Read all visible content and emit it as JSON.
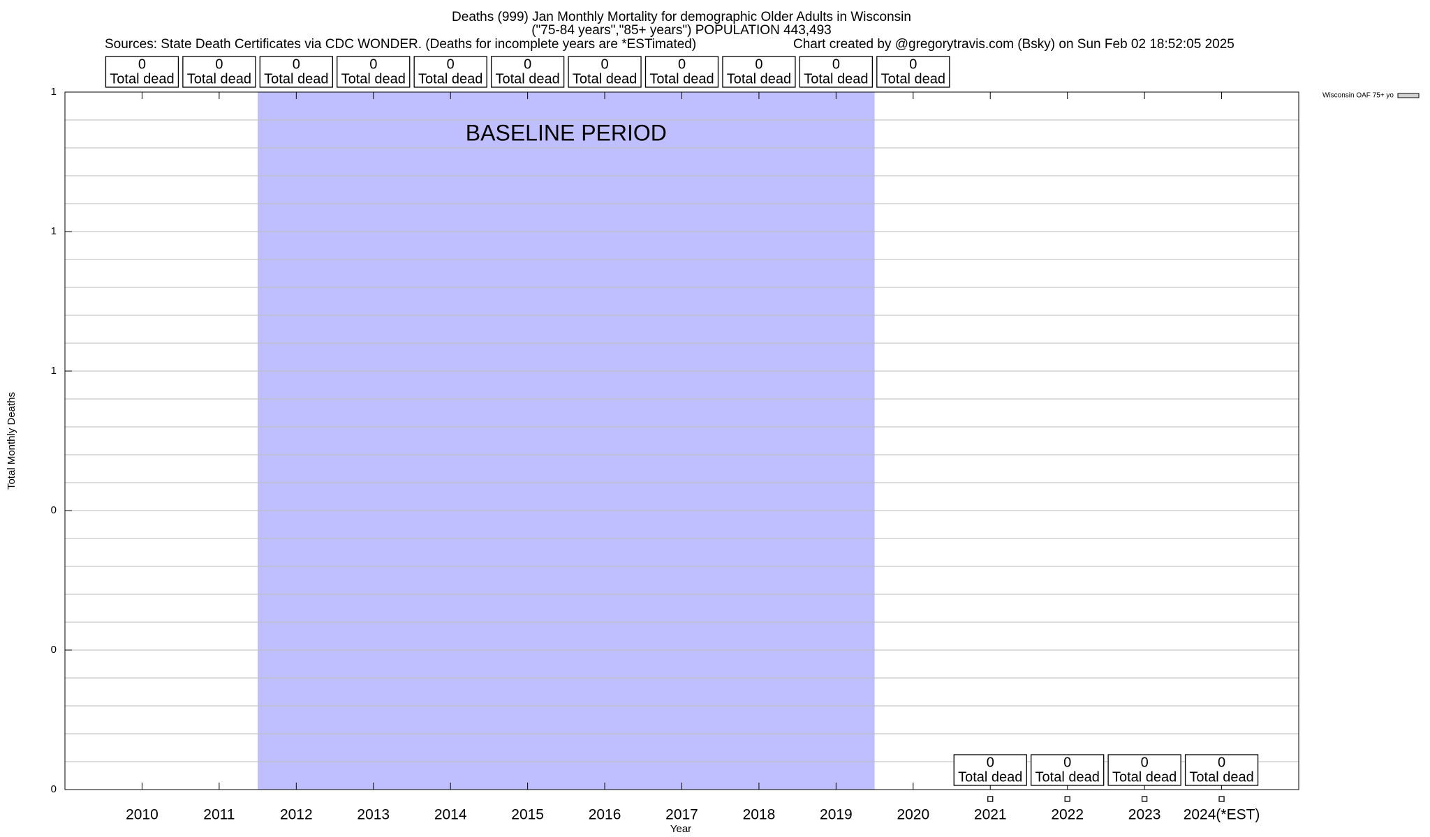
{
  "chart_data": {
    "type": "bar",
    "title": "Deaths (999) Jan Monthly Mortality for demographic Older Adults in Wisconsin",
    "subtitle": "(\"75-84 years\",\"85+ years\") POPULATION 443,493",
    "source": "Sources: State Death Certificates via CDC WONDER. (Deaths for incomplete years are *ESTimated)",
    "credit": "Chart created by @gregorytravis.com (Bsky) on Sun Feb 02 18:52:05 2025",
    "x_label": "Year",
    "y_label": "Total Monthly Deaths",
    "categories": [
      "2010",
      "2011",
      "2012",
      "2013",
      "2014",
      "2015",
      "2016",
      "2017",
      "2018",
      "2019",
      "2020",
      "2021",
      "2022",
      "2023",
      "2024(*EST)"
    ],
    "series": [
      {
        "name": "Wisconsin OAF 75+ yo",
        "color": "#d3d3d3",
        "values": [
          0,
          0,
          0,
          0,
          0,
          0,
          0,
          0,
          0,
          0,
          0,
          null,
          null,
          null,
          null
        ]
      },
      {
        "color": "#000000",
        "values": [
          null,
          null,
          null,
          null,
          null,
          null,
          null,
          null,
          null,
          null,
          null,
          0,
          0,
          0,
          0
        ]
      }
    ],
    "data_label_text": "Total dead",
    "ylim": [
      0,
      1
    ],
    "yticks": [
      0,
      {
        "value": 0.2,
        "label": "0"
      },
      {
        "value": 0.4,
        "label": "0"
      },
      {
        "value": 0.6,
        "label": "1"
      },
      {
        "value": 0.8,
        "label": "1"
      },
      1
    ],
    "yminorticks": [
      0.04,
      0.08,
      0.12,
      0.16,
      0.24,
      0.28,
      0.32,
      0.36,
      0.44,
      0.48,
      0.52,
      0.56,
      0.64,
      0.68,
      0.72,
      0.76,
      0.84,
      0.88,
      0.92,
      0.96
    ],
    "grid": true,
    "legend": "top-right",
    "baseline": {
      "label": "BASELINE PERIOD",
      "start": "2012",
      "end": "2019",
      "color": "#bfbfff"
    }
  }
}
